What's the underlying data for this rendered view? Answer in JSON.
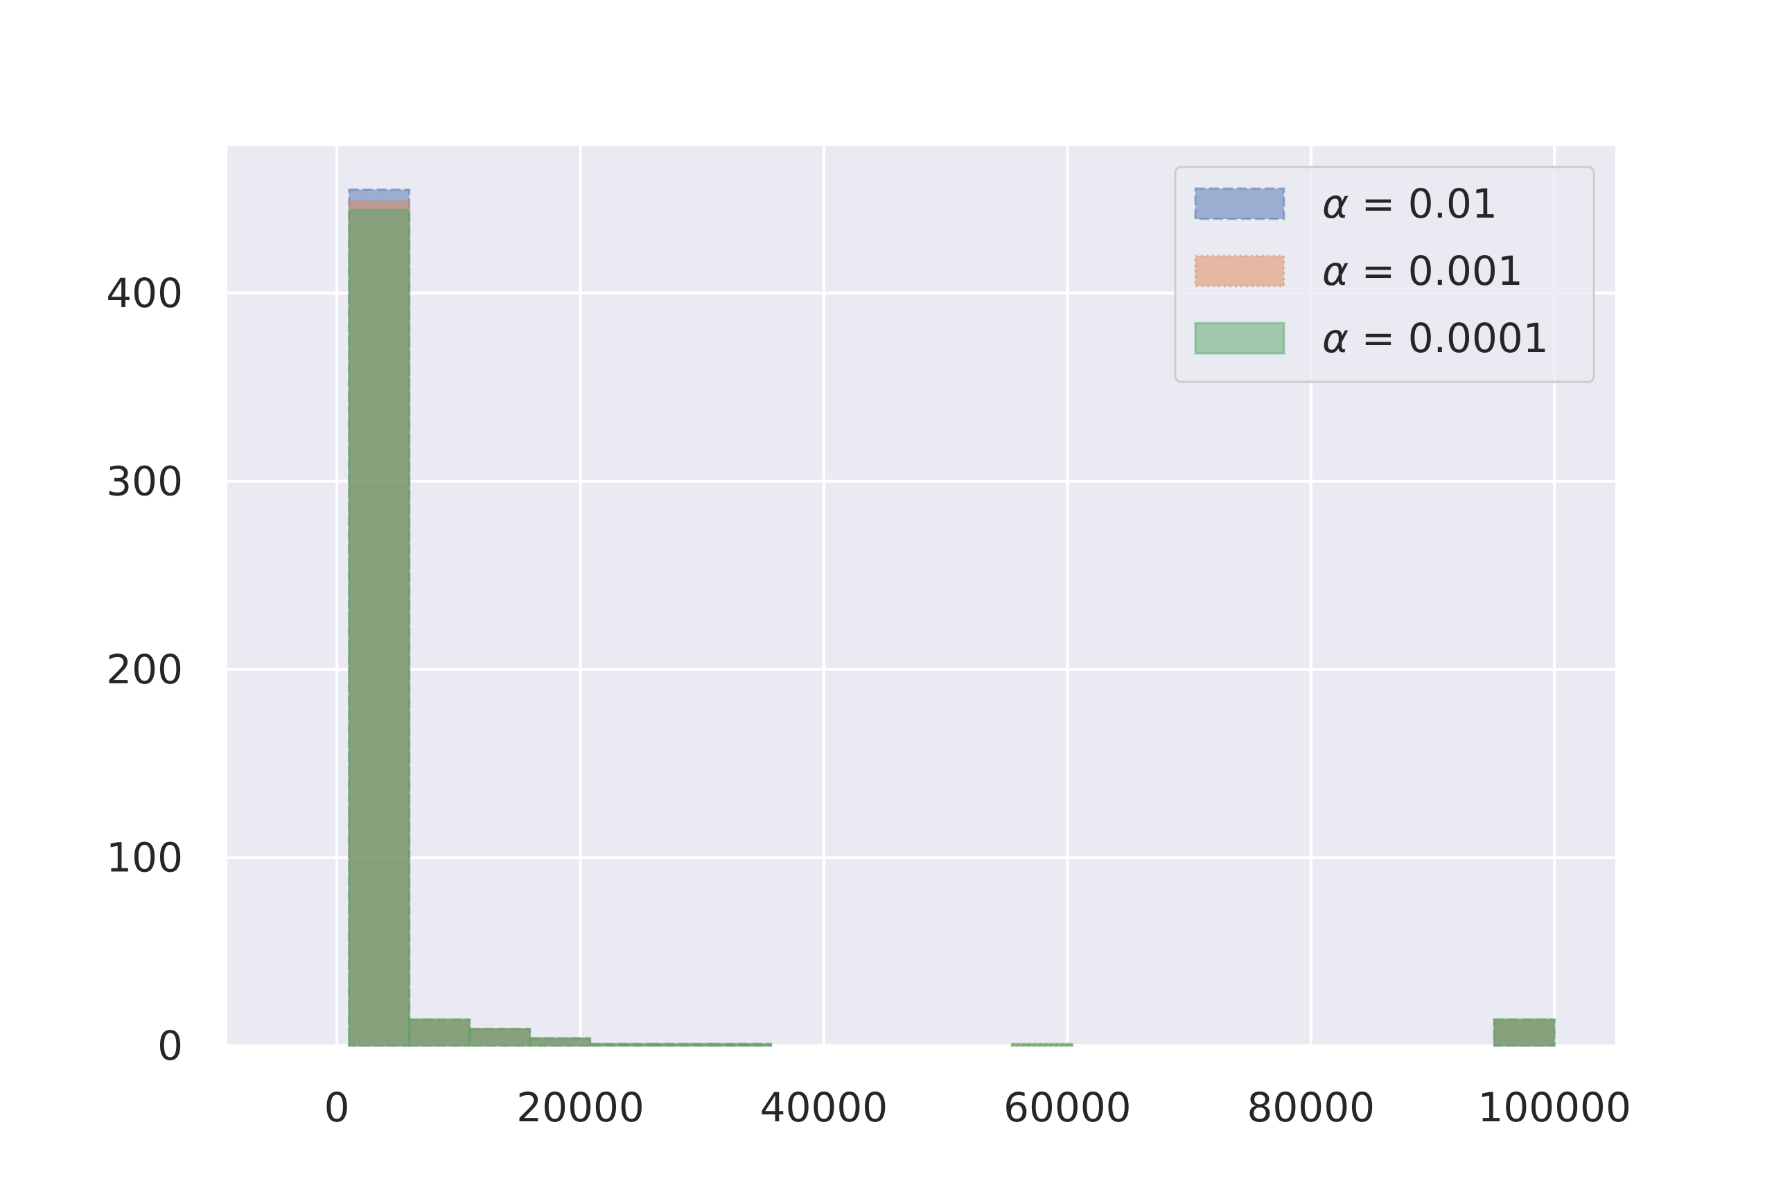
{
  "chart_data": {
    "type": "bar",
    "subtype": "overlaid-histogram",
    "title": "",
    "xlabel": "",
    "ylabel": "",
    "xlim": [
      -9000,
      105000
    ],
    "ylim": [
      0,
      478
    ],
    "x_ticks": [
      0,
      20000,
      40000,
      60000,
      80000,
      100000
    ],
    "x_tick_labels": [
      "0",
      "20000",
      "40000",
      "60000",
      "80000",
      "100000"
    ],
    "y_ticks": [
      0,
      100,
      200,
      300,
      400
    ],
    "y_tick_labels": [
      "0",
      "100",
      "200",
      "300",
      "400"
    ],
    "grid": true,
    "background": "#eaeaf2",
    "legend_position": "top-right",
    "bin_edges": [
      1000,
      5950,
      10900,
      15850,
      20800,
      25750,
      30700,
      35650,
      40600,
      45550,
      50500,
      55450,
      60400,
      65350,
      70300,
      75250,
      80200,
      85150,
      90100,
      95050,
      100000
    ],
    "series": [
      {
        "name": "α = 0.01",
        "legend_prefix": "α",
        "legend_value": "= 0.01",
        "color": "#4c72b0",
        "edge_style": "dashed",
        "values": [
          455,
          14,
          9,
          4,
          1,
          1,
          1,
          0,
          0,
          0,
          0,
          0,
          0,
          0,
          0,
          0,
          0,
          0,
          0,
          14
        ]
      },
      {
        "name": "α = 0.001",
        "legend_prefix": "α",
        "legend_value": "= 0.001",
        "color": "#dd8452",
        "edge_style": "dotted",
        "values": [
          449,
          14,
          9,
          4,
          1,
          1,
          1,
          0,
          0,
          0,
          0,
          1,
          0,
          0,
          0,
          0,
          0,
          0,
          0,
          14
        ]
      },
      {
        "name": "α = 0.0001",
        "legend_prefix": "α",
        "legend_value": "= 0.0001",
        "color": "#55a868",
        "edge_style": "solid",
        "values": [
          444,
          14,
          9,
          4,
          1,
          1,
          1,
          0,
          0,
          0,
          0,
          1,
          0,
          0,
          0,
          0,
          0,
          0,
          0,
          14
        ]
      }
    ]
  }
}
